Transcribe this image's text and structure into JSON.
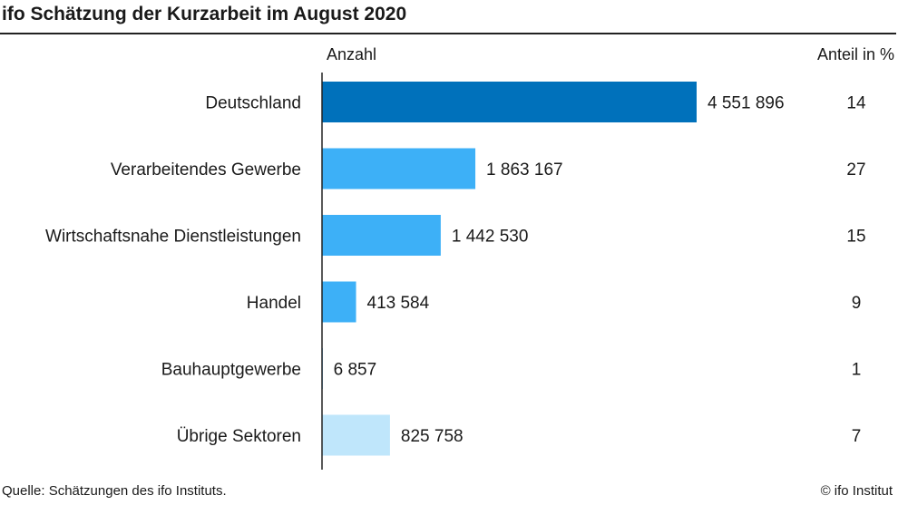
{
  "title": "ifo Schätzung der Kurzarbeit im August 2020",
  "source": "Quelle: Schätzungen des ifo Instituts.",
  "copyright": "© ifo Institut",
  "colors": {
    "total": "#0071bb",
    "sector": "#3db0f7",
    "other": "#bfe6fb",
    "axis": "#222222",
    "text": "#1a1a1a"
  },
  "chart_data": {
    "type": "bar",
    "orientation": "horizontal",
    "title": "ifo Schätzung der Kurzarbeit im August 2020",
    "value_column_label": "Anzahl",
    "share_column_label": "Anteil in %",
    "categories": [
      "Deutschland",
      "Verarbeitendes Gewerbe",
      "Wirtschaftsnahe Dienstleistungen",
      "Handel",
      "Bauhauptgewerbe",
      "Übrige Sektoren"
    ],
    "values": [
      4551896,
      1863167,
      1442530,
      413584,
      6857,
      825758
    ],
    "value_labels": [
      "4 551 896",
      "1 863 167",
      "1 442 530",
      "413 584",
      "6 857",
      "825 758"
    ],
    "shares": [
      14,
      27,
      15,
      9,
      1,
      7
    ],
    "bar_color_keys": [
      "total",
      "sector",
      "sector",
      "sector",
      "sector",
      "other"
    ],
    "xlim": [
      0,
      4551896
    ],
    "grid": false,
    "legend": "none"
  }
}
